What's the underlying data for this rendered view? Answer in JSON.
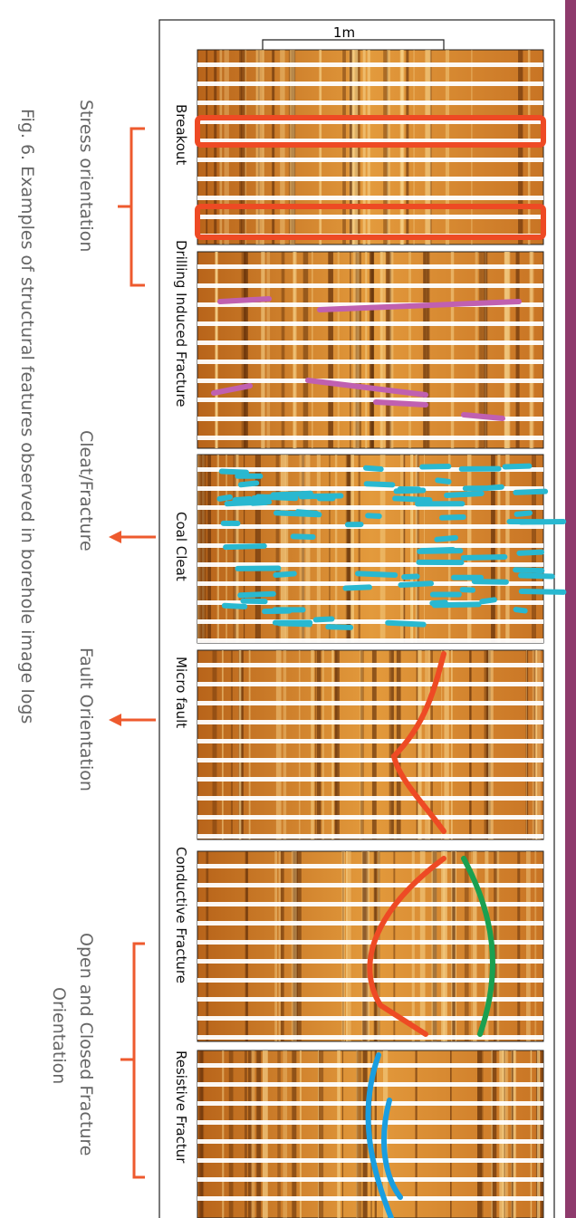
{
  "scale_bar": "1m",
  "panels": [
    {
      "label": "Breakout"
    },
    {
      "label": "Drilling Induced Fracture"
    },
    {
      "label": "Coal Cleat"
    },
    {
      "label": "Micro fault"
    },
    {
      "label": "Conductive Fracture"
    },
    {
      "label": "Resistive Fractur"
    }
  ],
  "annotations": [
    {
      "lines": [
        "Stress orientation"
      ]
    },
    {
      "lines": [
        "Cleat/Fracture"
      ]
    },
    {
      "lines": [
        "Fault Orientation"
      ]
    },
    {
      "lines": [
        "Open and Closed Fracture",
        "Orientation"
      ]
    }
  ],
  "caption": "Fig. 6. Examples of structural features observed in borehole image logs"
}
